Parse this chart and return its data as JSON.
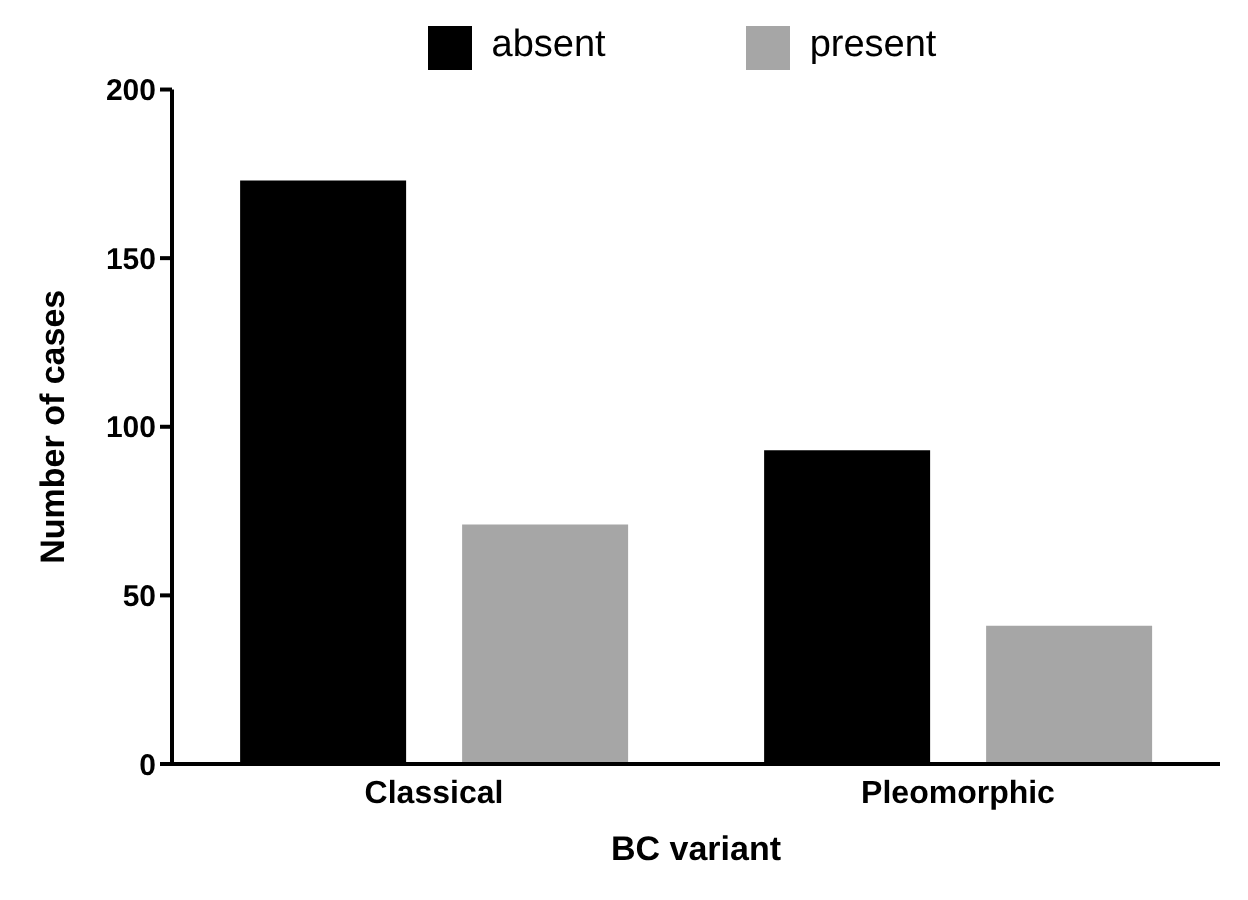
{
  "chart_data": {
    "type": "bar",
    "xlabel": "BC variant",
    "ylabel": "Number of cases",
    "categories": [
      "Classical",
      "Pleomorphic"
    ],
    "series": [
      {
        "name": "absent",
        "color": "#000000",
        "values": [
          173,
          93
        ]
      },
      {
        "name": "present",
        "color": "#a6a6a6",
        "values": [
          71,
          41
        ]
      }
    ],
    "ylim": [
      0,
      200
    ],
    "yticks": [
      0,
      50,
      100,
      150,
      200
    ],
    "grid": false,
    "legend": "top"
  }
}
